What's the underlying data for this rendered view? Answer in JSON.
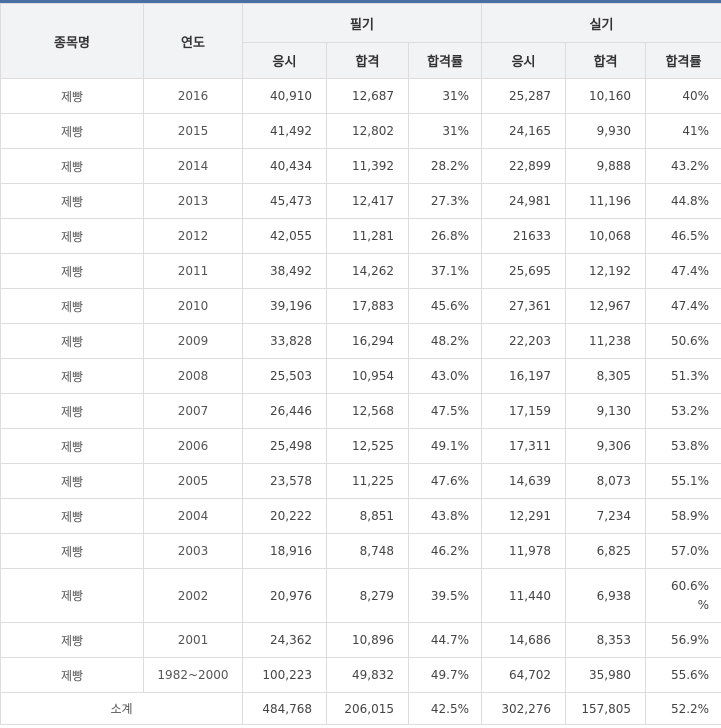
{
  "header": {
    "name": "종목명",
    "year": "연도",
    "written": "필기",
    "practical": "실기",
    "sub": [
      "응시",
      "합격",
      "합격률",
      "응시",
      "합격",
      "합격률"
    ]
  },
  "rows": [
    {
      "name": "제빵",
      "year": "2016",
      "w_apply": "40,910",
      "w_pass": "12,687",
      "w_rate": "31%",
      "p_apply": "25,287",
      "p_pass": "10,160",
      "p_rate": "40%"
    },
    {
      "name": "제빵",
      "year": "2015",
      "w_apply": "41,492",
      "w_pass": "12,802",
      "w_rate": "31%",
      "p_apply": "24,165",
      "p_pass": "9,930",
      "p_rate": "41%"
    },
    {
      "name": "제빵",
      "year": "2014",
      "w_apply": "40,434",
      "w_pass": "11,392",
      "w_rate": "28.2%",
      "p_apply": "22,899",
      "p_pass": "9,888",
      "p_rate": "43.2%"
    },
    {
      "name": "제빵",
      "year": "2013",
      "w_apply": "45,473",
      "w_pass": "12,417",
      "w_rate": "27.3%",
      "p_apply": "24,981",
      "p_pass": "11,196",
      "p_rate": "44.8%"
    },
    {
      "name": "제빵",
      "year": "2012",
      "w_apply": "42,055",
      "w_pass": "11,281",
      "w_rate": "26.8%",
      "p_apply": "21633",
      "p_pass": "10,068",
      "p_rate": "46.5%"
    },
    {
      "name": "제빵",
      "year": "2011",
      "w_apply": "38,492",
      "w_pass": "14,262",
      "w_rate": "37.1%",
      "p_apply": "25,695",
      "p_pass": "12,192",
      "p_rate": "47.4%"
    },
    {
      "name": "제빵",
      "year": "2010",
      "w_apply": "39,196",
      "w_pass": "17,883",
      "w_rate": "45.6%",
      "p_apply": "27,361",
      "p_pass": "12,967",
      "p_rate": "47.4%"
    },
    {
      "name": "제빵",
      "year": "2009",
      "w_apply": "33,828",
      "w_pass": "16,294",
      "w_rate": "48.2%",
      "p_apply": "22,203",
      "p_pass": "11,238",
      "p_rate": "50.6%"
    },
    {
      "name": "제빵",
      "year": "2008",
      "w_apply": "25,503",
      "w_pass": "10,954",
      "w_rate": "43.0%",
      "p_apply": "16,197",
      "p_pass": "8,305",
      "p_rate": "51.3%"
    },
    {
      "name": "제빵",
      "year": "2007",
      "w_apply": "26,446",
      "w_pass": "12,568",
      "w_rate": "47.5%",
      "p_apply": "17,159",
      "p_pass": "9,130",
      "p_rate": "53.2%"
    },
    {
      "name": "제빵",
      "year": "2006",
      "w_apply": "25,498",
      "w_pass": "12,525",
      "w_rate": "49.1%",
      "p_apply": "17,311",
      "p_pass": "9,306",
      "p_rate": "53.8%"
    },
    {
      "name": "제빵",
      "year": "2005",
      "w_apply": "23,578",
      "w_pass": "11,225",
      "w_rate": "47.6%",
      "p_apply": "14,639",
      "p_pass": "8,073",
      "p_rate": "55.1%"
    },
    {
      "name": "제빵",
      "year": "2004",
      "w_apply": "20,222",
      "w_pass": "8,851",
      "w_rate": "43.8%",
      "p_apply": "12,291",
      "p_pass": "7,234",
      "p_rate": "58.9%"
    },
    {
      "name": "제빵",
      "year": "2003",
      "w_apply": "18,916",
      "w_pass": "8,748",
      "w_rate": "46.2%",
      "p_apply": "11,978",
      "p_pass": "6,825",
      "p_rate": "57.0%"
    },
    {
      "name": "제빵",
      "year": "2002",
      "w_apply": "20,976",
      "w_pass": "8,279",
      "w_rate": "39.5%",
      "p_apply": "11,440",
      "p_pass": "6,938",
      "p_rate": "60.6% %"
    },
    {
      "name": "제빵",
      "year": "2001",
      "w_apply": "24,362",
      "w_pass": "10,896",
      "w_rate": "44.7%",
      "p_apply": "14,686",
      "p_pass": "8,353",
      "p_rate": "56.9%"
    },
    {
      "name": "제빵",
      "year": "1982~2000",
      "w_apply": "100,223",
      "w_pass": "49,832",
      "w_rate": "49.7%",
      "p_apply": "64,702",
      "p_pass": "35,980",
      "p_rate": "55.6%"
    }
  ],
  "total": {
    "label": "소계",
    "w_apply": "484,768",
    "w_pass": "206,015",
    "w_rate": "42.5%",
    "p_apply": "302,276",
    "p_pass": "157,805",
    "p_rate": "52.2%"
  }
}
